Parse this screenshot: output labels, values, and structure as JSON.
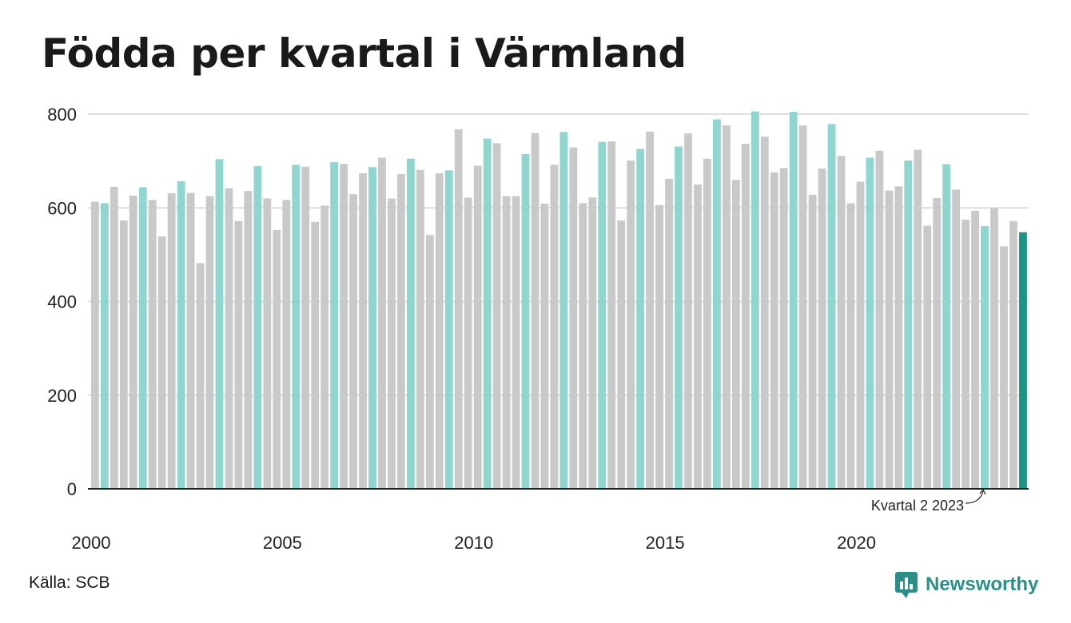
{
  "title": "Födda per kvartal i Värmland",
  "source": "Källa: SCB",
  "brand": "Newsworthy",
  "colors": {
    "highlight_quarter": "#8ed6cf",
    "other_quarter": "#c9c9c9",
    "latest": "#1b9385",
    "grid": "#dddddd",
    "axis": "#222222",
    "brand": "#2a8f86"
  },
  "chart_data": {
    "type": "bar",
    "title": "Födda per kvartal i Värmland",
    "ylim": [
      0,
      800
    ],
    "yticks": [
      0,
      200,
      400,
      600,
      800
    ],
    "xticks": [
      "2000",
      "2005",
      "2010",
      "2015",
      "2020"
    ],
    "grid": true,
    "annotation": {
      "text": "Kvartal 2 2023",
      "target": "2023 Q2"
    },
    "series": [
      {
        "values": [
          613,
          610,
          645,
          573,
          626,
          644,
          617,
          539,
          631,
          657,
          632,
          482,
          625,
          704,
          642,
          572,
          636,
          689,
          620,
          553,
          617,
          692,
          688,
          570,
          605,
          698,
          694,
          629,
          674,
          687,
          707,
          620,
          672,
          705,
          681,
          542,
          674,
          680,
          768,
          622,
          690,
          748,
          738,
          625,
          625,
          715,
          760,
          609,
          692,
          762,
          729,
          610,
          622,
          741,
          742,
          573,
          701,
          726,
          763,
          606,
          662,
          731,
          759,
          650,
          705,
          789,
          776,
          660,
          737,
          806,
          752,
          676,
          685,
          805,
          776,
          628,
          684,
          779,
          711,
          610,
          656,
          707,
          722,
          637,
          646,
          701,
          724,
          562,
          621,
          693,
          639,
          575,
          594,
          561,
          600,
          518,
          572,
          548
        ]
      }
    ]
  }
}
